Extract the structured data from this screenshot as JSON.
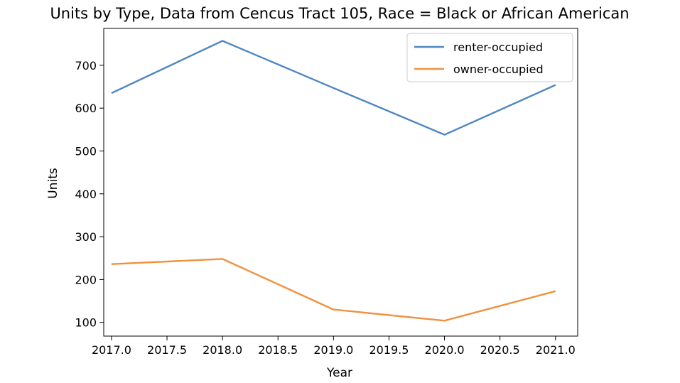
{
  "chart_data": {
    "type": "line",
    "title": "Units by Type, Data from Cencus Tract 105, Race = Black or African American",
    "xlabel": "Year",
    "ylabel": "Units",
    "x": [
      2017,
      2018,
      2019,
      2020,
      2021
    ],
    "xlim": [
      2016.93,
      2021.2
    ],
    "ylim": [
      68,
      786
    ],
    "xticks": [
      "2017.0",
      "2017.5",
      "2018.0",
      "2018.5",
      "2019.0",
      "2019.5",
      "2020.0",
      "2020.5",
      "2021.0"
    ],
    "xtick_values": [
      2017.0,
      2017.5,
      2018.0,
      2018.5,
      2019.0,
      2019.5,
      2020.0,
      2020.5,
      2021.0
    ],
    "yticks": [
      "100",
      "200",
      "300",
      "400",
      "500",
      "600",
      "700"
    ],
    "ytick_values": [
      100,
      200,
      300,
      400,
      500,
      600,
      700
    ],
    "grid": false,
    "legend_position": "top-right",
    "series": [
      {
        "name": "renter-occupied",
        "color": "#4e88c0",
        "values": [
          635,
          757,
          647,
          538,
          654
        ]
      },
      {
        "name": "owner-occupied",
        "color": "#f0913e",
        "values": [
          236,
          248,
          130,
          104,
          173
        ]
      }
    ]
  }
}
